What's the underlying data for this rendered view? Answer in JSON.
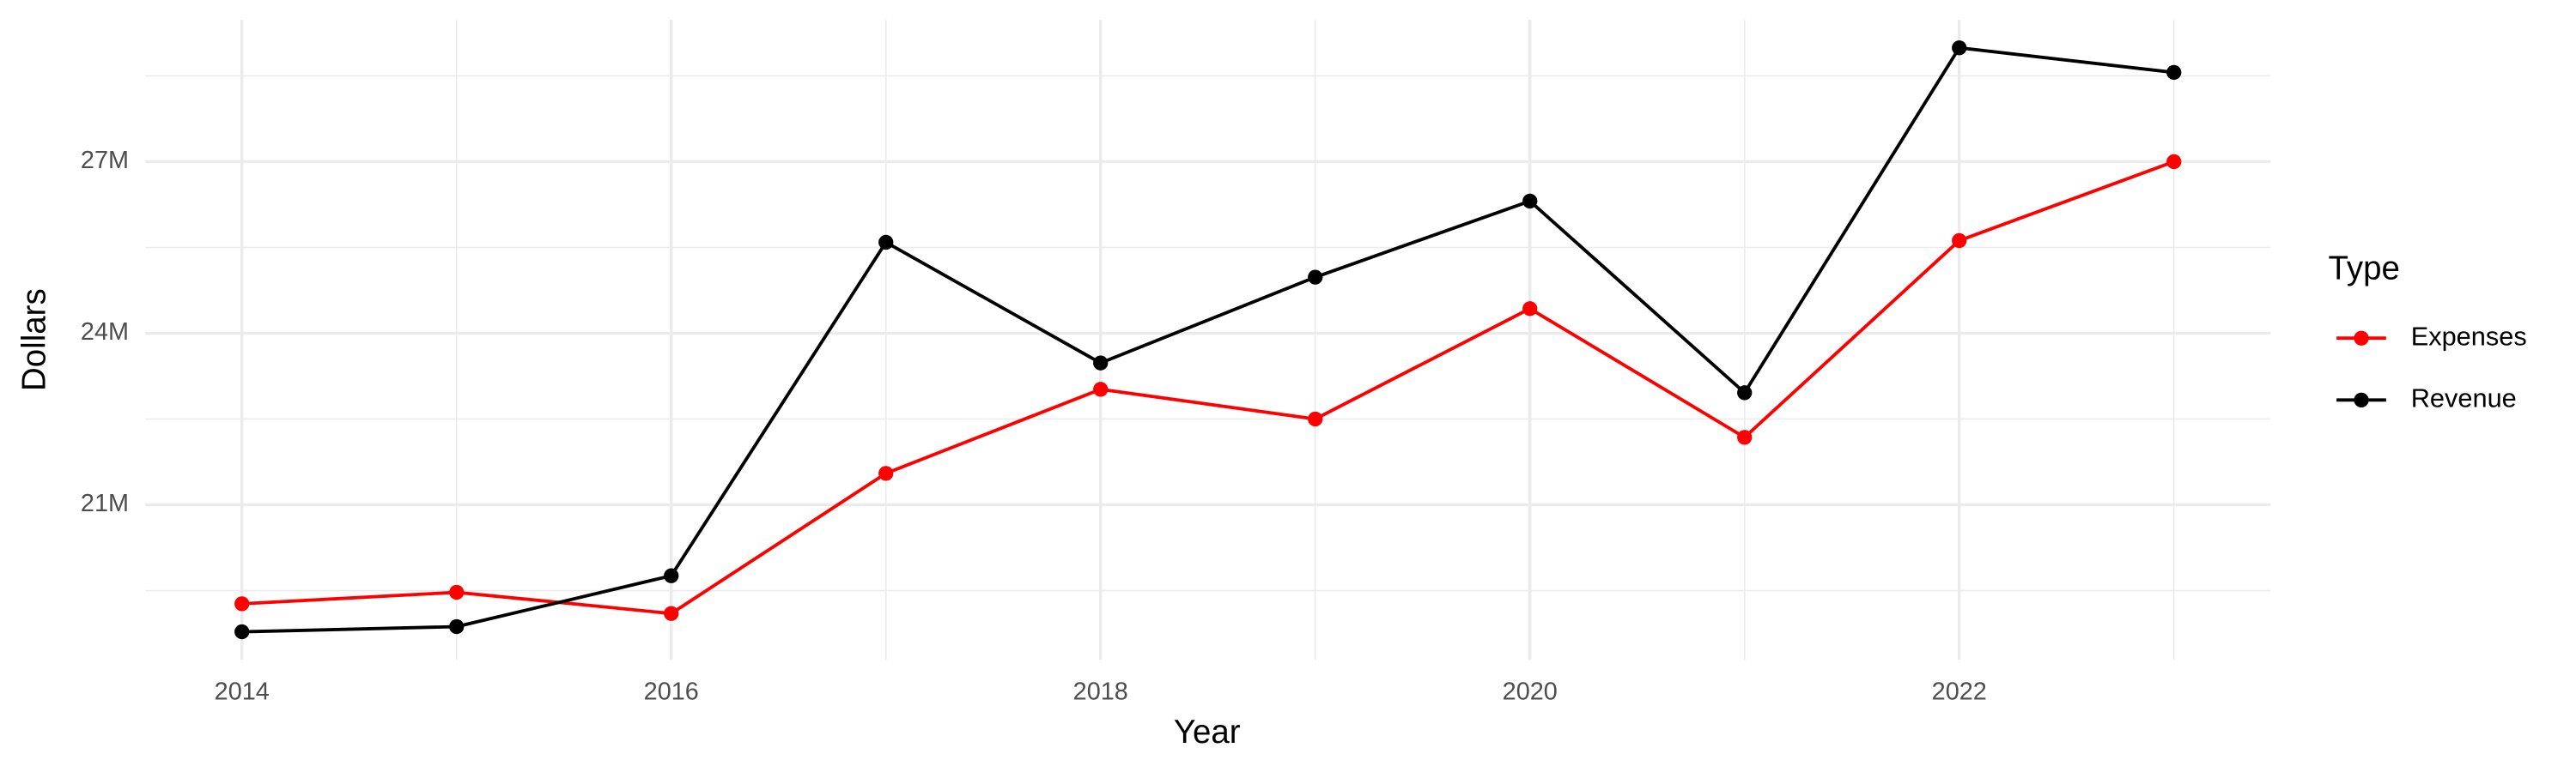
{
  "chart_data": {
    "type": "line",
    "x_label": "Year",
    "y_label": "Dollars",
    "legend_title": "Type",
    "legend": "right",
    "grid": true,
    "x": [
      2014,
      2015,
      2016,
      2017,
      2018,
      2019,
      2020,
      2021,
      2022,
      2023
    ],
    "series": [
      {
        "name": "Expenses",
        "color": "#ff0000",
        "values": [
          19270000,
          19470000,
          19100000,
          21550000,
          23020000,
          22500000,
          24430000,
          22180000,
          25620000,
          27000000
        ]
      },
      {
        "name": "Revenue",
        "color": "#000000",
        "values": [
          18780000,
          18870000,
          19760000,
          25590000,
          23480000,
          24980000,
          26310000,
          22960000,
          28990000,
          28560000
        ]
      }
    ],
    "xlim": [
      2013.55,
      2023.45
    ],
    "xticks": [
      2014,
      2016,
      2018,
      2020,
      2022
    ],
    "x_minor_ticks": [
      2015,
      2017,
      2019,
      2021,
      2023
    ],
    "ylim": [
      18290000,
      29480000
    ],
    "yticks": [
      {
        "value": 21000000,
        "label": "21M"
      },
      {
        "value": 24000000,
        "label": "24M"
      },
      {
        "value": 27000000,
        "label": "27M"
      }
    ],
    "y_minor_ticks": [
      19500000,
      22500000,
      25500000,
      28500000
    ]
  }
}
